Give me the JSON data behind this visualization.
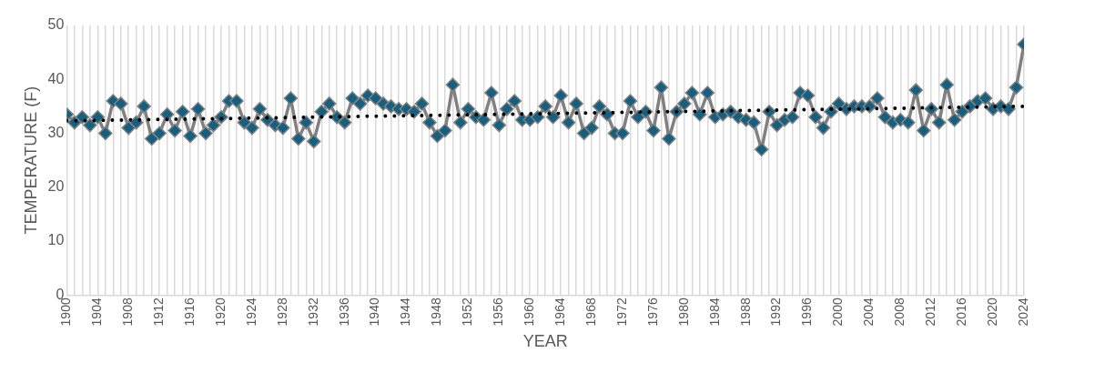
{
  "chart_data": {
    "type": "line",
    "xlabel": "YEAR",
    "ylabel": "TEMPERATURE (F)",
    "x": [
      1900,
      1901,
      1902,
      1903,
      1904,
      1905,
      1906,
      1907,
      1908,
      1909,
      1910,
      1911,
      1912,
      1913,
      1914,
      1915,
      1916,
      1917,
      1918,
      1919,
      1920,
      1921,
      1922,
      1923,
      1924,
      1925,
      1926,
      1927,
      1928,
      1929,
      1930,
      1931,
      1932,
      1933,
      1934,
      1935,
      1936,
      1937,
      1938,
      1939,
      1940,
      1941,
      1942,
      1943,
      1944,
      1945,
      1946,
      1947,
      1948,
      1949,
      1950,
      1951,
      1952,
      1953,
      1954,
      1955,
      1956,
      1957,
      1958,
      1959,
      1960,
      1961,
      1962,
      1963,
      1964,
      1965,
      1966,
      1967,
      1968,
      1969,
      1970,
      1971,
      1972,
      1973,
      1974,
      1975,
      1976,
      1977,
      1978,
      1979,
      1980,
      1981,
      1982,
      1983,
      1984,
      1985,
      1986,
      1987,
      1988,
      1989,
      1990,
      1991,
      1992,
      1993,
      1994,
      1995,
      1996,
      1997,
      1998,
      1999,
      2000,
      2001,
      2002,
      2003,
      2004,
      2005,
      2006,
      2007,
      2008,
      2009,
      2010,
      2011,
      2012,
      2013,
      2014,
      2015,
      2016,
      2017,
      2018,
      2019,
      2020,
      2021,
      2022,
      2023,
      2024
    ],
    "series": [
      {
        "color": "#155f80",
        "marker": "diamond",
        "line_style": "solid",
        "values": [
          33.5,
          32,
          33,
          31.5,
          33,
          30,
          36,
          35.5,
          31,
          32,
          35,
          29,
          30,
          33.5,
          30.5,
          34,
          29.5,
          34.5,
          30,
          31.5,
          33,
          36,
          36,
          32,
          31,
          34.5,
          32.5,
          31.5,
          31,
          36.5,
          29,
          32,
          28.5,
          34,
          35.5,
          33,
          32,
          36.5,
          35.5,
          37,
          36.5,
          35.5,
          35,
          34.5,
          34.5,
          34,
          35.5,
          32,
          29.5,
          30.5,
          39,
          32,
          34.5,
          33,
          32.5,
          37.5,
          31.5,
          34.5,
          36,
          32.5,
          32.5,
          33,
          35,
          33,
          37,
          32,
          35.5,
          30,
          31,
          35,
          33.5,
          30,
          30,
          36,
          33,
          34,
          30.5,
          38.5,
          29,
          34,
          35.5,
          37.5,
          33.5,
          37.5,
          33,
          33.5,
          34,
          33,
          32.5,
          32,
          27,
          34,
          31.5,
          32.5,
          33,
          37.5,
          37,
          33,
          31,
          34,
          35.5,
          34.5,
          35,
          35,
          35,
          36.5,
          33,
          32,
          32.5,
          32,
          38,
          30.5,
          34.5,
          32,
          39,
          32.5,
          34,
          35,
          36,
          36.5,
          34.5,
          35,
          34.5,
          38.5,
          46.5
        ]
      },
      {
        "color": "#000000",
        "marker": "none",
        "line_style": "dotted",
        "x": [
          1900,
          2024
        ],
        "values": [
          32.3,
          35.0
        ]
      }
    ],
    "xlim": [
      1900,
      2024
    ],
    "xticks": [
      1900,
      {
        "value": 1901,
        "label": null
      },
      {
        "value": 1902,
        "label": null
      },
      {
        "value": 1903,
        "label": null
      },
      1904,
      {
        "value": 1905,
        "label": null
      },
      {
        "value": 1906,
        "label": null
      },
      {
        "value": 1907,
        "label": null
      },
      1908,
      {
        "value": 1909,
        "label": null
      },
      {
        "value": 1910,
        "label": null
      },
      {
        "value": 1911,
        "label": null
      },
      1912,
      {
        "value": 1913,
        "label": null
      },
      {
        "value": 1914,
        "label": null
      },
      {
        "value": 1915,
        "label": null
      },
      1916,
      {
        "value": 1917,
        "label": null
      },
      {
        "value": 1918,
        "label": null
      },
      {
        "value": 1919,
        "label": null
      },
      1920,
      {
        "value": 1921,
        "label": null
      },
      {
        "value": 1922,
        "label": null
      },
      {
        "value": 1923,
        "label": null
      },
      1924,
      {
        "value": 1925,
        "label": null
      },
      {
        "value": 1926,
        "label": null
      },
      {
        "value": 1927,
        "label": null
      },
      1928,
      {
        "value": 1929,
        "label": null
      },
      {
        "value": 1930,
        "label": null
      },
      {
        "value": 1931,
        "label": null
      },
      1932,
      {
        "value": 1933,
        "label": null
      },
      {
        "value": 1934,
        "label": null
      },
      {
        "value": 1935,
        "label": null
      },
      1936,
      {
        "value": 1937,
        "label": null
      },
      {
        "value": 1938,
        "label": null
      },
      {
        "value": 1939,
        "label": null
      },
      1940,
      {
        "value": 1941,
        "label": null
      },
      {
        "value": 1942,
        "label": null
      },
      {
        "value": 1943,
        "label": null
      },
      1944,
      {
        "value": 1945,
        "label": null
      },
      {
        "value": 1946,
        "label": null
      },
      {
        "value": 1947,
        "label": null
      },
      1948,
      {
        "value": 1949,
        "label": null
      },
      {
        "value": 1950,
        "label": null
      },
      {
        "value": 1951,
        "label": null
      },
      1952,
      {
        "value": 1953,
        "label": null
      },
      {
        "value": 1954,
        "label": null
      },
      {
        "value": 1955,
        "label": null
      },
      1956,
      {
        "value": 1957,
        "label": null
      },
      {
        "value": 1958,
        "label": null
      },
      {
        "value": 1959,
        "label": null
      },
      1960,
      {
        "value": 1961,
        "label": null
      },
      {
        "value": 1962,
        "label": null
      },
      {
        "value": 1963,
        "label": null
      },
      1964,
      {
        "value": 1965,
        "label": null
      },
      {
        "value": 1966,
        "label": null
      },
      {
        "value": 1967,
        "label": null
      },
      1968,
      {
        "value": 1969,
        "label": null
      },
      {
        "value": 1970,
        "label": null
      },
      {
        "value": 1971,
        "label": null
      },
      1972,
      {
        "value": 1973,
        "label": null
      },
      {
        "value": 1974,
        "label": null
      },
      {
        "value": 1975,
        "label": null
      },
      1976,
      {
        "value": 1977,
        "label": null
      },
      {
        "value": 1978,
        "label": null
      },
      {
        "value": 1979,
        "label": null
      },
      1980,
      {
        "value": 1981,
        "label": null
      },
      {
        "value": 1982,
        "label": null
      },
      {
        "value": 1983,
        "label": null
      },
      1984,
      {
        "value": 1985,
        "label": null
      },
      {
        "value": 1986,
        "label": null
      },
      {
        "value": 1987,
        "label": null
      },
      1988,
      {
        "value": 1989,
        "label": null
      },
      {
        "value": 1990,
        "label": null
      },
      {
        "value": 1991,
        "label": null
      },
      1992,
      {
        "value": 1993,
        "label": null
      },
      {
        "value": 1994,
        "label": null
      },
      {
        "value": 1995,
        "label": null
      },
      1996,
      {
        "value": 1997,
        "label": null
      },
      {
        "value": 1998,
        "label": null
      },
      {
        "value": 1999,
        "label": null
      },
      2000,
      {
        "value": 2001,
        "label": null
      },
      {
        "value": 2002,
        "label": null
      },
      {
        "value": 2003,
        "label": null
      },
      2004,
      {
        "value": 2005,
        "label": null
      },
      {
        "value": 2006,
        "label": null
      },
      {
        "value": 2007,
        "label": null
      },
      2008,
      {
        "value": 2009,
        "label": null
      },
      {
        "value": 2010,
        "label": null
      },
      {
        "value": 2011,
        "label": null
      },
      2012,
      {
        "value": 2013,
        "label": null
      },
      {
        "value": 2014,
        "label": null
      },
      {
        "value": 2015,
        "label": null
      },
      2016,
      {
        "value": 2017,
        "label": null
      },
      {
        "value": 2018,
        "label": null
      },
      {
        "value": 2019,
        "label": null
      },
      2020,
      {
        "value": 2021,
        "label": null
      },
      {
        "value": 2022,
        "label": null
      },
      {
        "value": 2023,
        "label": null
      },
      2024
    ],
    "ylim": [
      0,
      50
    ],
    "yticks": [
      0,
      10,
      20,
      30,
      40,
      50
    ],
    "grid": "x",
    "legend": false
  }
}
